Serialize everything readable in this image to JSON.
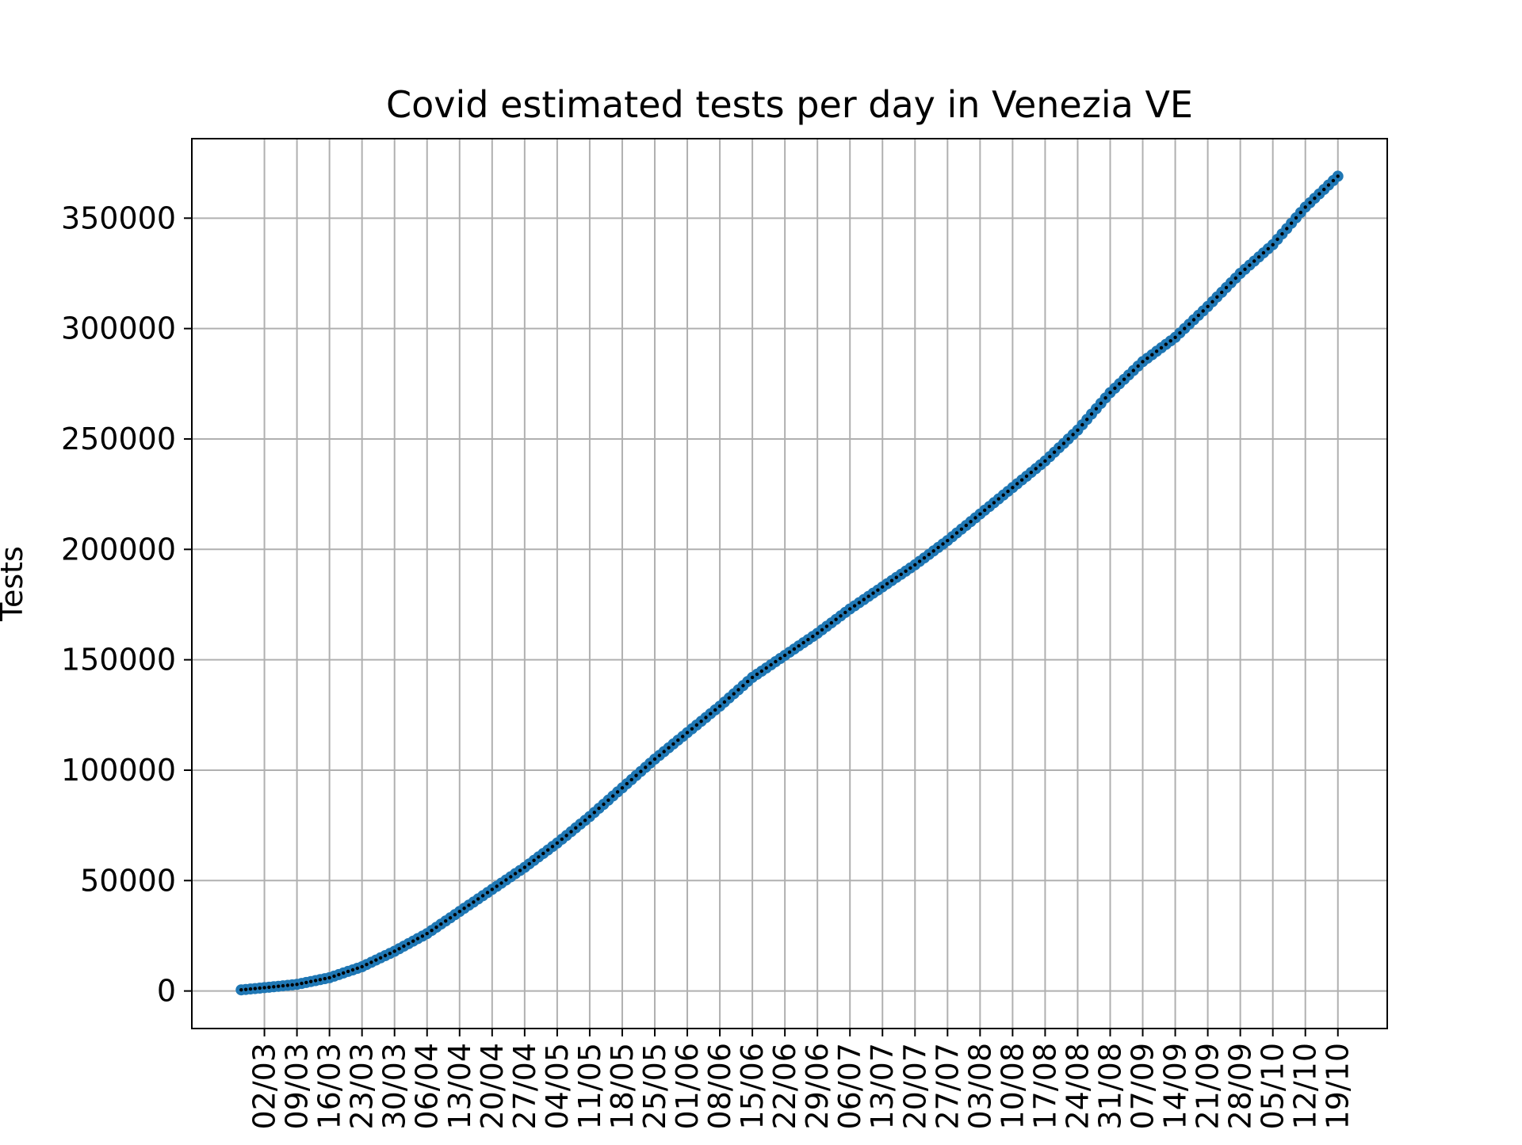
{
  "chart_data": {
    "type": "line",
    "title": "Covid estimated tests per day in Venezia VE",
    "xlabel": "",
    "ylabel": "Tests",
    "grid": true,
    "x_start_date": "2020-02-26",
    "x_end_date": "2020-10-19",
    "x_tick_labels": [
      "02/03",
      "09/03",
      "16/03",
      "23/03",
      "30/03",
      "06/04",
      "13/04",
      "20/04",
      "27/04",
      "04/05",
      "11/05",
      "18/05",
      "25/05",
      "01/06",
      "08/06",
      "15/06",
      "22/06",
      "29/06",
      "06/07",
      "13/07",
      "20/07",
      "27/07",
      "03/08",
      "10/08",
      "17/08",
      "24/08",
      "31/08",
      "07/09",
      "14/09",
      "21/09",
      "28/09",
      "05/10",
      "12/10",
      "19/10"
    ],
    "y_ticks": [
      0,
      50000,
      100000,
      150000,
      200000,
      250000,
      300000,
      350000
    ],
    "y_tick_labels": [
      "0",
      "50000",
      "100000",
      "150000",
      "200000",
      "250000",
      "300000",
      "350000"
    ],
    "ylim": [
      -17000,
      386000
    ],
    "series_color": "#1f77b4",
    "point_center_color": "#000000",
    "series": [
      {
        "name": "",
        "x": [
          "2020-02-26",
          "2020-03-02",
          "2020-03-09",
          "2020-03-16",
          "2020-03-23",
          "2020-03-30",
          "2020-04-06",
          "2020-04-13",
          "2020-04-20",
          "2020-04-27",
          "2020-05-04",
          "2020-05-11",
          "2020-05-18",
          "2020-05-25",
          "2020-06-01",
          "2020-06-08",
          "2020-06-15",
          "2020-06-22",
          "2020-06-29",
          "2020-07-06",
          "2020-07-13",
          "2020-07-20",
          "2020-07-27",
          "2020-08-03",
          "2020-08-10",
          "2020-08-17",
          "2020-08-24",
          "2020-08-31",
          "2020-09-07",
          "2020-09-14",
          "2020-09-21",
          "2020-09-28",
          "2020-10-05",
          "2020-10-12",
          "2020-10-19"
        ],
        "values": [
          500,
          1500,
          3000,
          6000,
          11000,
          18000,
          26000,
          36000,
          46000,
          56000,
          67000,
          79000,
          92000,
          105000,
          117000,
          129000,
          142000,
          152000,
          162000,
          173000,
          183000,
          193000,
          204000,
          216000,
          228000,
          240000,
          254000,
          271000,
          285000,
          296000,
          310000,
          325000,
          338000,
          355000,
          369000
        ]
      }
    ]
  }
}
